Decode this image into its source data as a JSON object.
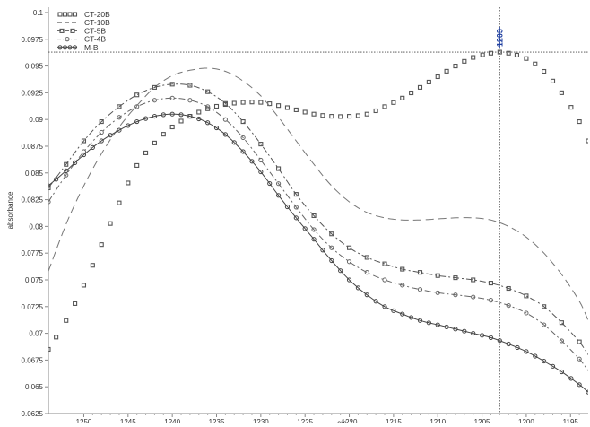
{
  "chart_data": {
    "type": "line",
    "xlabel": "cm-1",
    "ylabel": "absorbance",
    "xlim": [
      1254,
      1193
    ],
    "ylim": [
      0.0625,
      0.1005
    ],
    "x_reversed": true,
    "grid": false,
    "legend_position": "top-left",
    "x_ticks": [
      1250,
      1245,
      1240,
      1235,
      1230,
      1225,
      1220,
      1215,
      1210,
      1205,
      1200,
      1195
    ],
    "x_tick_labels": [
      "1250",
      "1245",
      "1240",
      "1235",
      "1230",
      "1225",
      "1220",
      "1215",
      "1210",
      "1205",
      "1200",
      "1195"
    ],
    "y_ticks": [
      0.0625,
      0.065,
      0.0675,
      0.07,
      0.0725,
      0.075,
      0.0775,
      0.08,
      0.0825,
      0.085,
      0.0875,
      0.09,
      0.0925,
      0.095,
      0.0975,
      0.1
    ],
    "y_tick_labels": [
      "0.0625",
      "0.065",
      "0.0675",
      "0.07",
      "0.0725",
      "0.075",
      "0.0775",
      "0.08",
      "0.0825",
      "0.085",
      "0.0875",
      "0.09",
      "0.0925",
      "0.095",
      "0.0975",
      "0.1"
    ],
    "cursor": {
      "x": 1203,
      "y": 0.0963,
      "label": "1203"
    },
    "series": [
      {
        "name": "CT-20B",
        "style": "square-markers",
        "color": "#555555",
        "x": [
          1254,
          1252,
          1250,
          1248,
          1246,
          1244,
          1242,
          1240,
          1238,
          1236,
          1234,
          1232,
          1230,
          1228,
          1226,
          1224,
          1222,
          1220,
          1218,
          1216,
          1214,
          1212,
          1210,
          1208,
          1206,
          1204,
          1203,
          1202,
          1200,
          1198,
          1196,
          1194,
          1193
        ],
        "y": [
          0.0685,
          0.0712,
          0.0745,
          0.0783,
          0.0822,
          0.0857,
          0.0878,
          0.0893,
          0.0903,
          0.091,
          0.0914,
          0.0916,
          0.0916,
          0.0913,
          0.0909,
          0.0905,
          0.0903,
          0.0903,
          0.0905,
          0.0912,
          0.092,
          0.093,
          0.094,
          0.095,
          0.0958,
          0.0962,
          0.0963,
          0.0962,
          0.0957,
          0.0945,
          0.0925,
          0.0898,
          0.088
        ]
      },
      {
        "name": "CT-10B",
        "style": "long-dash",
        "color": "#777777",
        "x": [
          1254,
          1252,
          1250,
          1248,
          1246,
          1244,
          1242,
          1240,
          1238,
          1236,
          1234,
          1232,
          1230,
          1228,
          1226,
          1224,
          1222,
          1220,
          1218,
          1216,
          1214,
          1212,
          1210,
          1208,
          1206,
          1204,
          1202,
          1200,
          1198,
          1196,
          1194,
          1193
        ],
        "y": [
          0.0758,
          0.0802,
          0.0838,
          0.0868,
          0.0893,
          0.0913,
          0.093,
          0.0941,
          0.0946,
          0.0948,
          0.0945,
          0.0936,
          0.0922,
          0.0902,
          0.088,
          0.0858,
          0.0838,
          0.0823,
          0.0813,
          0.0808,
          0.0806,
          0.0806,
          0.0807,
          0.0808,
          0.0808,
          0.0806,
          0.08,
          0.079,
          0.0775,
          0.0755,
          0.073,
          0.0712
        ]
      },
      {
        "name": "CT-5B",
        "style": "dash-dot-square",
        "color": "#555555",
        "x": [
          1254,
          1252,
          1250,
          1248,
          1246,
          1244,
          1242,
          1240,
          1238,
          1236,
          1234,
          1232,
          1230,
          1228,
          1226,
          1224,
          1222,
          1220,
          1218,
          1216,
          1214,
          1212,
          1210,
          1208,
          1206,
          1204,
          1202,
          1200,
          1198,
          1196,
          1194,
          1193
        ],
        "y": [
          0.0836,
          0.0858,
          0.088,
          0.0898,
          0.0912,
          0.0923,
          0.093,
          0.0933,
          0.0932,
          0.0926,
          0.0915,
          0.0898,
          0.0877,
          0.0854,
          0.083,
          0.081,
          0.0793,
          0.078,
          0.0771,
          0.0765,
          0.076,
          0.0757,
          0.0754,
          0.0752,
          0.075,
          0.0747,
          0.0742,
          0.0735,
          0.0725,
          0.071,
          0.0692,
          0.068
        ]
      },
      {
        "name": "CT-4B",
        "style": "dash-dot-circle",
        "color": "#666666",
        "x": [
          1254,
          1252,
          1250,
          1248,
          1246,
          1244,
          1242,
          1240,
          1238,
          1236,
          1234,
          1232,
          1230,
          1228,
          1226,
          1224,
          1222,
          1220,
          1218,
          1216,
          1214,
          1212,
          1210,
          1208,
          1206,
          1204,
          1202,
          1200,
          1198,
          1196,
          1194,
          1193
        ],
        "y": [
          0.0823,
          0.0848,
          0.087,
          0.0888,
          0.0902,
          0.0912,
          0.0918,
          0.092,
          0.0918,
          0.0912,
          0.09,
          0.0883,
          0.0862,
          0.084,
          0.0818,
          0.0797,
          0.078,
          0.0767,
          0.0757,
          0.075,
          0.0745,
          0.0741,
          0.0738,
          0.0736,
          0.0734,
          0.0731,
          0.0726,
          0.0719,
          0.0708,
          0.0693,
          0.0676,
          0.0665
        ]
      },
      {
        "name": "M-B",
        "style": "solid-circle",
        "color": "#444444",
        "x": [
          1254,
          1252,
          1250,
          1248,
          1246,
          1244,
          1242,
          1240,
          1238,
          1236,
          1234,
          1232,
          1230,
          1228,
          1226,
          1224,
          1222,
          1220,
          1218,
          1216,
          1214,
          1212,
          1210,
          1208,
          1206,
          1204,
          1202,
          1200,
          1198,
          1196,
          1194,
          1193
        ],
        "y": [
          0.0838,
          0.0852,
          0.0867,
          0.088,
          0.089,
          0.0898,
          0.0903,
          0.0905,
          0.0903,
          0.0897,
          0.0886,
          0.087,
          0.0851,
          0.0829,
          0.0808,
          0.0788,
          0.0768,
          0.075,
          0.0736,
          0.0725,
          0.0718,
          0.0712,
          0.0708,
          0.0704,
          0.07,
          0.0696,
          0.069,
          0.0683,
          0.0674,
          0.0664,
          0.0652,
          0.0645
        ]
      }
    ]
  }
}
